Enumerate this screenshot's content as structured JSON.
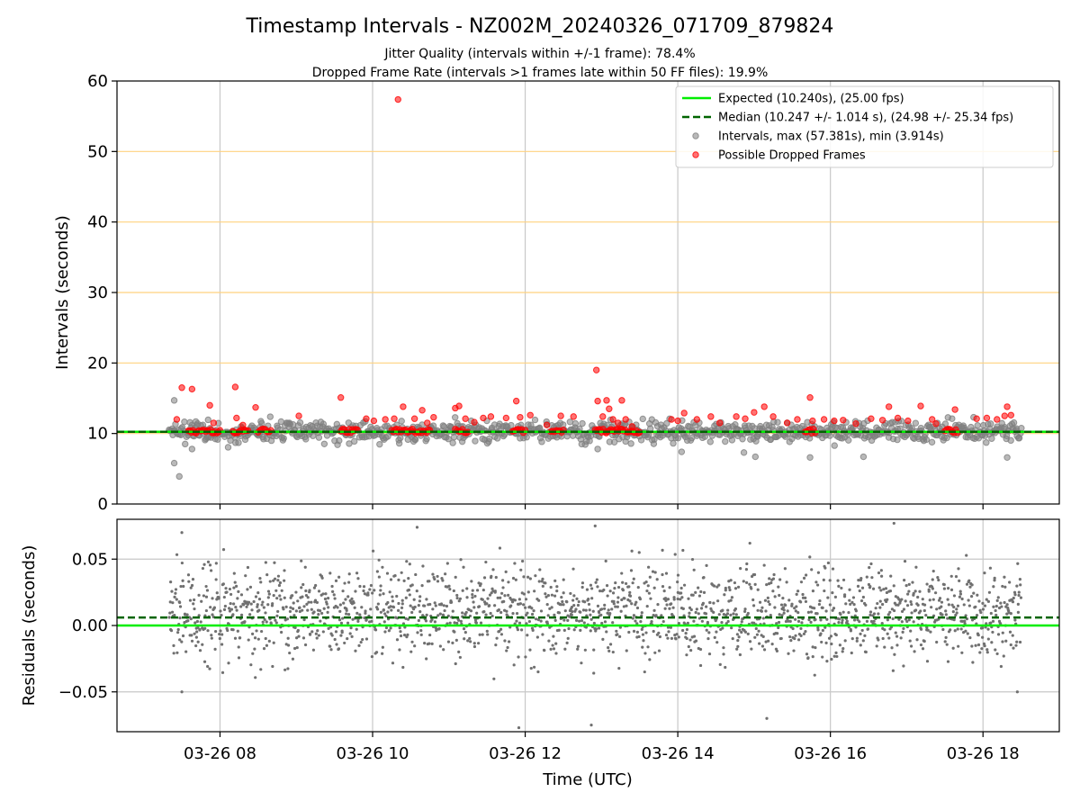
{
  "figure": {
    "title": "Timestamp Intervals - NZ002M_20240326_071709_879824",
    "subtitle1": "Jitter Quality (intervals within +/-1 frame): 78.4%",
    "subtitle2": "Dropped Frame Rate (intervals >1 frames late within 50 FF files): 19.9%"
  },
  "chart_data": [
    {
      "type": "scatter",
      "ylabel": "Intervals (seconds)",
      "xlim": [
        "2024-03-26 06:39",
        "2024-03-26 19:00"
      ],
      "ylim": [
        0,
        60
      ],
      "yticks": [
        "0",
        "10",
        "20",
        "30",
        "40",
        "50",
        "60"
      ],
      "grid": "vertical gray at x ticks, horizontal orange at 10-unit steps",
      "legend_position": "top-right",
      "legend": [
        "Expected (10.240s), (25.00 fps)",
        "Median (10.247 +/- 1.014 s), (24.98 +/- 25.34 fps)",
        "Intervals, max (57.381s), min (3.914s)",
        "Possible Dropped Frames"
      ],
      "expected_line": 10.24,
      "median_line": 10.247,
      "time_range_points": [
        "2024-03-26 07:20",
        "2024-03-26 18:30"
      ],
      "typical_interval_range": [
        8.0,
        12.5
      ],
      "dropped_frame_highlights": [
        {
          "x": "2024-03-26 07:26",
          "y": 12.0
        },
        {
          "x": "2024-03-26 07:30",
          "y": 16.5
        },
        {
          "x": "2024-03-26 07:38",
          "y": 16.3
        },
        {
          "x": "2024-03-26 07:52",
          "y": 14.0
        },
        {
          "x": "2024-03-26 07:55",
          "y": 11.5
        },
        {
          "x": "2024-03-26 08:12",
          "y": 16.6
        },
        {
          "x": "2024-03-26 08:13",
          "y": 12.2
        },
        {
          "x": "2024-03-26 08:18",
          "y": 11.2
        },
        {
          "x": "2024-03-26 08:28",
          "y": 13.7
        },
        {
          "x": "2024-03-26 09:02",
          "y": 12.5
        },
        {
          "x": "2024-03-26 09:35",
          "y": 15.1
        },
        {
          "x": "2024-03-26 09:55",
          "y": 12.1
        },
        {
          "x": "2024-03-26 10:01",
          "y": 11.8
        },
        {
          "x": "2024-03-26 10:10",
          "y": 12.0
        },
        {
          "x": "2024-03-26 10:17",
          "y": 12.1
        },
        {
          "x": "2024-03-26 10:20",
          "y": 57.381
        },
        {
          "x": "2024-03-26 10:24",
          "y": 13.8
        },
        {
          "x": "2024-03-26 10:33",
          "y": 12.1
        },
        {
          "x": "2024-03-26 10:39",
          "y": 13.3
        },
        {
          "x": "2024-03-26 10:43",
          "y": 11.5
        },
        {
          "x": "2024-03-26 10:48",
          "y": 12.3
        },
        {
          "x": "2024-03-26 11:05",
          "y": 13.6
        },
        {
          "x": "2024-03-26 11:08",
          "y": 13.9
        },
        {
          "x": "2024-03-26 11:13",
          "y": 12.1
        },
        {
          "x": "2024-03-26 11:20",
          "y": 11.6
        },
        {
          "x": "2024-03-26 11:27",
          "y": 12.2
        },
        {
          "x": "2024-03-26 11:33",
          "y": 12.4
        },
        {
          "x": "2024-03-26 11:45",
          "y": 12.2
        },
        {
          "x": "2024-03-26 11:53",
          "y": 14.6
        },
        {
          "x": "2024-03-26 11:56",
          "y": 12.3
        },
        {
          "x": "2024-03-26 12:04",
          "y": 12.6
        },
        {
          "x": "2024-03-26 12:17",
          "y": 11.2
        },
        {
          "x": "2024-03-26 12:28",
          "y": 12.5
        },
        {
          "x": "2024-03-26 12:38",
          "y": 12.4
        },
        {
          "x": "2024-03-26 12:56",
          "y": 19.0
        },
        {
          "x": "2024-03-26 12:57",
          "y": 14.6
        },
        {
          "x": "2024-03-26 13:01",
          "y": 12.4
        },
        {
          "x": "2024-03-26 13:04",
          "y": 14.7
        },
        {
          "x": "2024-03-26 13:06",
          "y": 13.5
        },
        {
          "x": "2024-03-26 13:09",
          "y": 12.0
        },
        {
          "x": "2024-03-26 13:13",
          "y": 11.5
        },
        {
          "x": "2024-03-26 13:16",
          "y": 14.7
        },
        {
          "x": "2024-03-26 13:19",
          "y": 12.0
        },
        {
          "x": "2024-03-26 13:24",
          "y": 11.0
        },
        {
          "x": "2024-03-26 13:55",
          "y": 12.0
        },
        {
          "x": "2024-03-26 14:00",
          "y": 11.8
        },
        {
          "x": "2024-03-26 14:05",
          "y": 12.9
        },
        {
          "x": "2024-03-26 14:15",
          "y": 12.0
        },
        {
          "x": "2024-03-26 14:26",
          "y": 12.4
        },
        {
          "x": "2024-03-26 14:33",
          "y": 11.5
        },
        {
          "x": "2024-03-26 14:46",
          "y": 12.4
        },
        {
          "x": "2024-03-26 14:53",
          "y": 12.1
        },
        {
          "x": "2024-03-26 15:00",
          "y": 13.0
        },
        {
          "x": "2024-03-26 15:08",
          "y": 13.8
        },
        {
          "x": "2024-03-26 15:15",
          "y": 12.4
        },
        {
          "x": "2024-03-26 15:26",
          "y": 11.5
        },
        {
          "x": "2024-03-26 15:34",
          "y": 12.0
        },
        {
          "x": "2024-03-26 15:44",
          "y": 15.1
        },
        {
          "x": "2024-03-26 15:46",
          "y": 11.8
        },
        {
          "x": "2024-03-26 15:55",
          "y": 12.0
        },
        {
          "x": "2024-03-26 16:03",
          "y": 11.8
        },
        {
          "x": "2024-03-26 16:10",
          "y": 11.9
        },
        {
          "x": "2024-03-26 16:20",
          "y": 11.4
        },
        {
          "x": "2024-03-26 16:32",
          "y": 12.1
        },
        {
          "x": "2024-03-26 16:41",
          "y": 11.9
        },
        {
          "x": "2024-03-26 16:46",
          "y": 13.8
        },
        {
          "x": "2024-03-26 16:53",
          "y": 12.2
        },
        {
          "x": "2024-03-26 17:01",
          "y": 11.8
        },
        {
          "x": "2024-03-26 17:11",
          "y": 13.9
        },
        {
          "x": "2024-03-26 17:20",
          "y": 12.0
        },
        {
          "x": "2024-03-26 17:23",
          "y": 11.4
        },
        {
          "x": "2024-03-26 17:38",
          "y": 13.4
        },
        {
          "x": "2024-03-26 17:55",
          "y": 12.1
        },
        {
          "x": "2024-03-26 18:03",
          "y": 12.2
        },
        {
          "x": "2024-03-26 18:11",
          "y": 12.0
        },
        {
          "x": "2024-03-26 18:17",
          "y": 12.5
        },
        {
          "x": "2024-03-26 18:19",
          "y": 13.8
        },
        {
          "x": "2024-03-26 18:22",
          "y": 12.6
        }
      ],
      "gray_outliers": [
        {
          "x": "2024-03-26 07:24",
          "y": 14.7
        },
        {
          "x": "2024-03-26 07:24",
          "y": 5.8
        },
        {
          "x": "2024-03-26 07:28",
          "y": 3.914
        },
        {
          "x": "2024-03-26 07:38",
          "y": 7.8
        },
        {
          "x": "2024-03-26 12:57",
          "y": 7.8
        },
        {
          "x": "2024-03-26 14:03",
          "y": 7.4
        },
        {
          "x": "2024-03-26 14:52",
          "y": 7.3
        },
        {
          "x": "2024-03-26 15:01",
          "y": 6.7
        },
        {
          "x": "2024-03-26 15:44",
          "y": 6.6
        },
        {
          "x": "2024-03-26 16:26",
          "y": 6.7
        },
        {
          "x": "2024-03-26 18:19",
          "y": 6.6
        }
      ],
      "dropped_clusters": [
        [
          "2024-03-26 07:35",
          "2024-03-26 08:00"
        ],
        [
          "2024-03-26 08:10",
          "2024-03-26 08:22"
        ],
        [
          "2024-03-26 08:30",
          "2024-03-26 08:40"
        ],
        [
          "2024-03-26 09:35",
          "2024-03-26 09:48"
        ],
        [
          "2024-03-26 10:15",
          "2024-03-26 10:45"
        ],
        [
          "2024-03-26 11:05",
          "2024-03-26 11:15"
        ],
        [
          "2024-03-26 11:50",
          "2024-03-26 12:00"
        ],
        [
          "2024-03-26 12:20",
          "2024-03-26 12:30"
        ],
        [
          "2024-03-26 12:55",
          "2024-03-26 13:30"
        ],
        [
          "2024-03-26 15:40",
          "2024-03-26 15:48"
        ],
        [
          "2024-03-26 17:30",
          "2024-03-26 17:40"
        ]
      ]
    },
    {
      "type": "scatter",
      "ylabel": "Residuals (seconds)",
      "xlabel": "Time (UTC)",
      "ylim": [
        -0.08,
        0.08
      ],
      "yticks": [
        "−0.05",
        "0.00",
        "0.05"
      ],
      "xticks": [
        "03-26 08",
        "03-26 10",
        "03-26 12",
        "03-26 14",
        "03-26 16",
        "03-26 18"
      ],
      "grid": "both",
      "zero_line": 0.0,
      "median_residual_line": 0.006,
      "residual_typical_range": [
        -0.03,
        0.05
      ],
      "residual_extremes": [
        {
          "x": "2024-03-26 07:30",
          "y": 0.07
        },
        {
          "x": "2024-03-26 10:35",
          "y": 0.074
        },
        {
          "x": "2024-03-26 12:55",
          "y": 0.075
        },
        {
          "x": "2024-03-26 16:50",
          "y": 0.077
        },
        {
          "x": "2024-03-26 11:55",
          "y": -0.077
        },
        {
          "x": "2024-03-26 12:52",
          "y": -0.075
        },
        {
          "x": "2024-03-26 15:10",
          "y": -0.07
        },
        {
          "x": "2024-03-26 07:30",
          "y": -0.05
        },
        {
          "x": "2024-03-26 18:27",
          "y": -0.05
        }
      ]
    }
  ],
  "colors": {
    "expected_line": "#00ee00",
    "median_line": "#006400",
    "interval_points": "#808080",
    "dropped_points": "#ff0000",
    "hgrid_top": "#ffd27f",
    "grid": "#c8c8c8"
  }
}
